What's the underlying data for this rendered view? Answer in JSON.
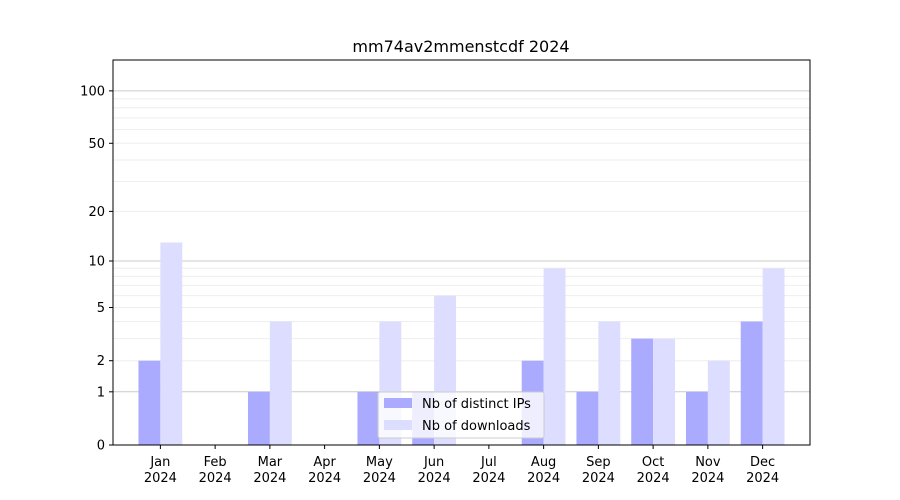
{
  "chart_data": {
    "type": "bar",
    "title": "mm74av2mmenstcdf 2024",
    "xlabel": "",
    "ylabel": "",
    "scale": "symlog",
    "ylim": [
      0,
      150
    ],
    "y_ticks": [
      0,
      1,
      2,
      5,
      10,
      20,
      50,
      100
    ],
    "categories": [
      [
        "Jan",
        "2024"
      ],
      [
        "Feb",
        "2024"
      ],
      [
        "Mar",
        "2024"
      ],
      [
        "Apr",
        "2024"
      ],
      [
        "May",
        "2024"
      ],
      [
        "Jun",
        "2024"
      ],
      [
        "Jul",
        "2024"
      ],
      [
        "Aug",
        "2024"
      ],
      [
        "Sep",
        "2024"
      ],
      [
        "Oct",
        "2024"
      ],
      [
        "Nov",
        "2024"
      ],
      [
        "Dec",
        "2024"
      ]
    ],
    "series": [
      {
        "name": "Nb of distinct IPs",
        "color": "#aaaaff",
        "values": [
          2,
          0,
          1,
          0,
          1,
          1,
          0,
          2,
          1,
          3,
          1,
          4
        ]
      },
      {
        "name": "Nb of downloads",
        "color": "#ddddff",
        "values": [
          13,
          0,
          4,
          0,
          4,
          6,
          0,
          9,
          4,
          3,
          2,
          9
        ]
      }
    ],
    "grid": true,
    "legend_position": "bottom-center"
  }
}
